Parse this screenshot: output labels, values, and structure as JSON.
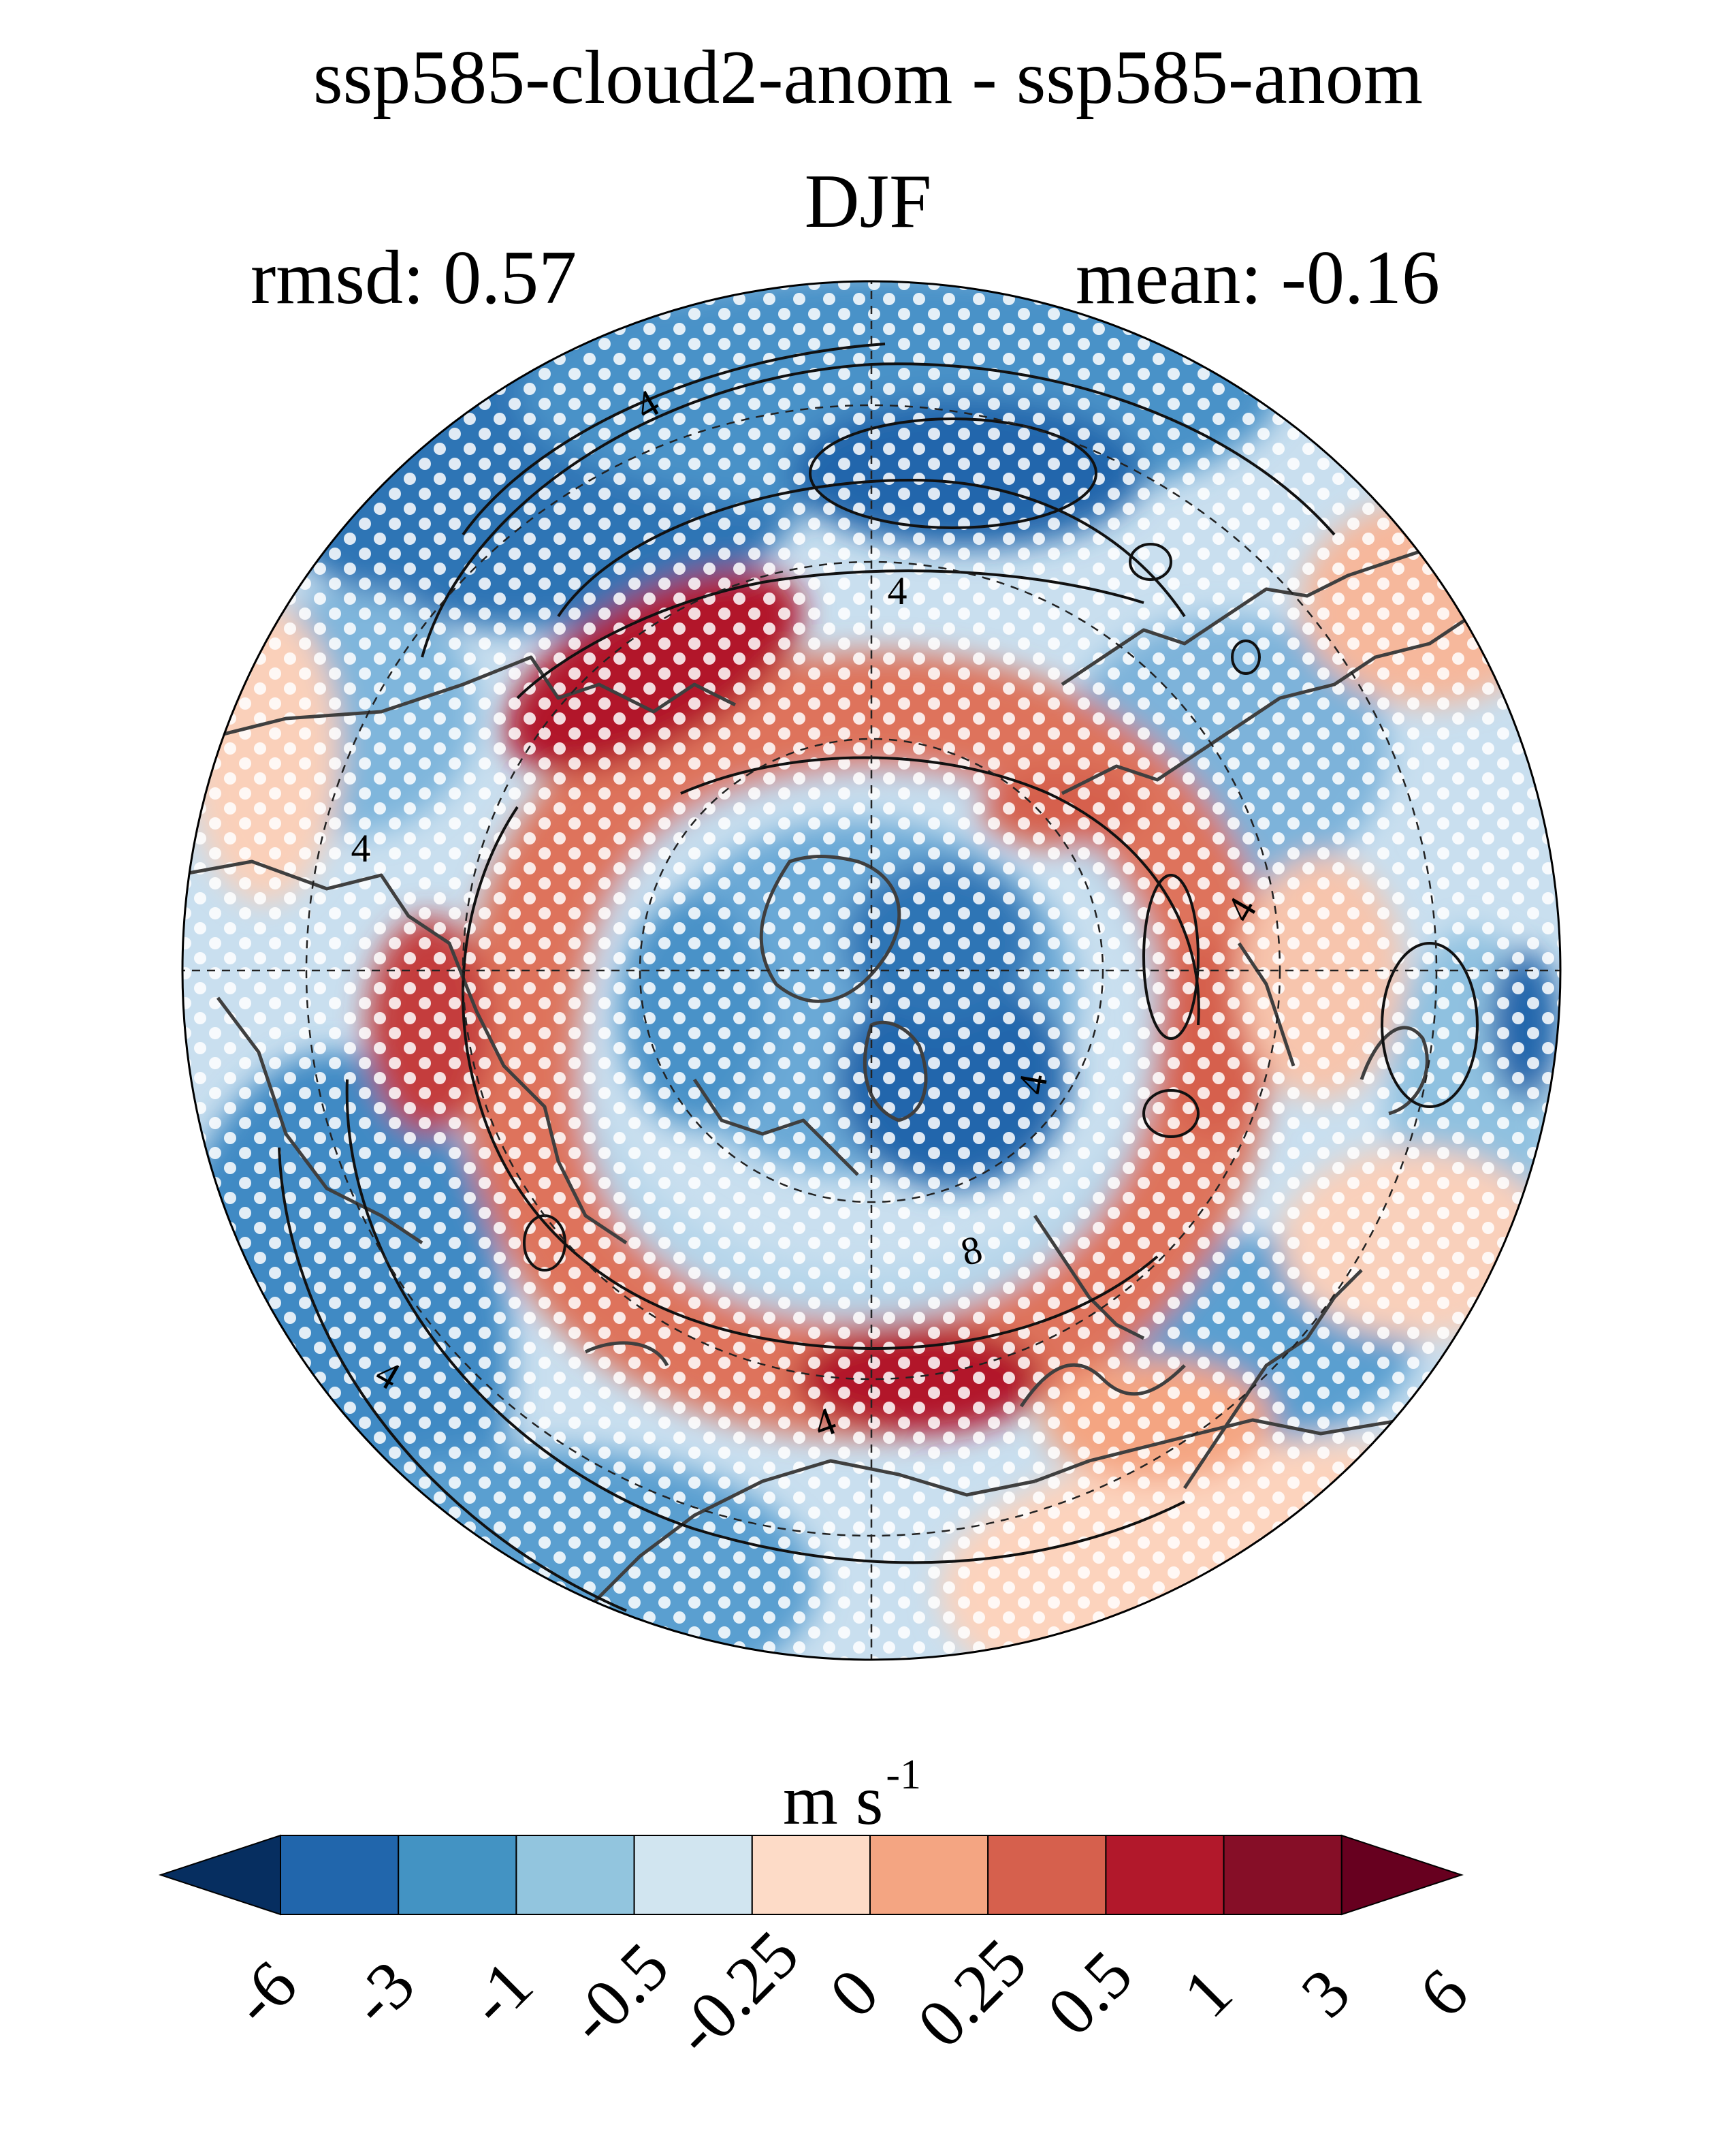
{
  "title": "ssp585-cloud2-anom - ssp585-anom",
  "season": "DJF",
  "stats": {
    "rmsd": "rmsd: 0.57",
    "mean": "mean: -0.16"
  },
  "units": {
    "base": "m s",
    "exp": "-1"
  },
  "contour_labels": [
    "4",
    "4",
    "4",
    "4",
    "4",
    "4",
    "4",
    "8"
  ],
  "colorbar": {
    "colors": [
      "#062e60",
      "#2166ac",
      "#4393c3",
      "#92c5de",
      "#d1e5f0",
      "#fddbc7",
      "#f4a582",
      "#d6604d",
      "#b2182b",
      "#860e27",
      "#67001f"
    ],
    "labels": [
      "-6",
      "-3",
      "-1",
      "-0.5",
      "-0.25",
      "0",
      "0.25",
      "0.5",
      "1",
      "3",
      "6"
    ]
  }
}
